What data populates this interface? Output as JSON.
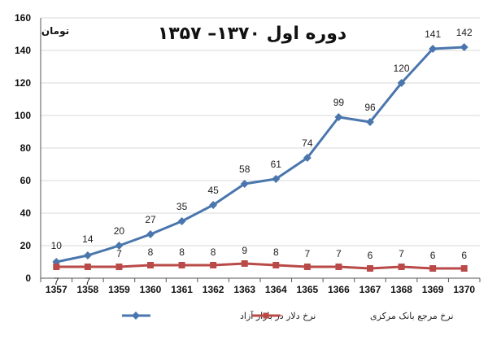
{
  "chart_data": {
    "type": "line",
    "title": "دوره اول ۱۳۷۰– ۱۳۵۷",
    "unit_label": "تومان",
    "categories": [
      "1357",
      "1358",
      "1359",
      "1360",
      "1361",
      "1362",
      "1363",
      "1364",
      "1365",
      "1366",
      "1367",
      "1368",
      "1369",
      "1370"
    ],
    "ylim": [
      0,
      160
    ],
    "yticks": [
      0,
      20,
      40,
      60,
      80,
      100,
      120,
      140,
      160
    ],
    "grid": true,
    "legend_position": "bottom",
    "series": [
      {
        "name": "نرخ دلار در بازار آزاد",
        "color": "#4a76ad",
        "marker": "diamond",
        "values": [
          10,
          14,
          20,
          27,
          35,
          45,
          58,
          61,
          74,
          99,
          96,
          120,
          141,
          142
        ]
      },
      {
        "name": "نرخ مرجع بانک مرکزی",
        "color": "#b94a48",
        "marker": "square",
        "values": [
          7,
          7,
          7,
          8,
          8,
          8,
          9,
          8,
          7,
          7,
          6,
          7,
          6,
          6
        ]
      }
    ]
  }
}
